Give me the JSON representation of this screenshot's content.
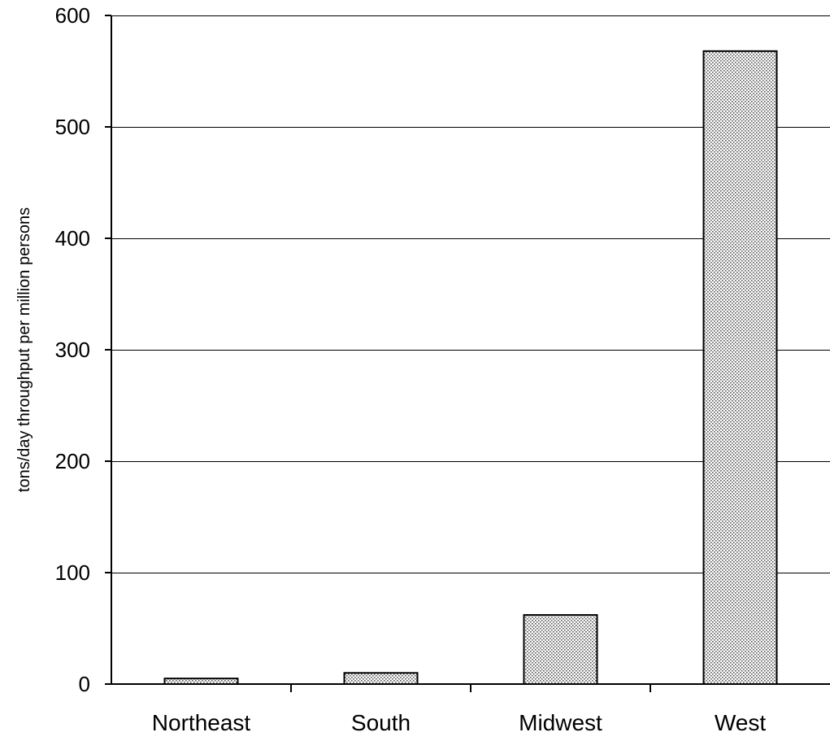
{
  "chart_data": {
    "type": "bar",
    "categories": [
      "Northeast",
      "South",
      "Midwest",
      "West"
    ],
    "values": [
      5,
      10,
      62,
      568
    ],
    "title": "",
    "xlabel": "",
    "ylabel": "tons/day throughput per million persons",
    "ylim": [
      0,
      600
    ],
    "yticks": [
      0,
      100,
      200,
      300,
      400,
      500,
      600
    ],
    "grid": true,
    "legend": "none",
    "bar_fill": "#dddddd",
    "bar_stroke": "#000000",
    "gridline_color": "#000000"
  }
}
